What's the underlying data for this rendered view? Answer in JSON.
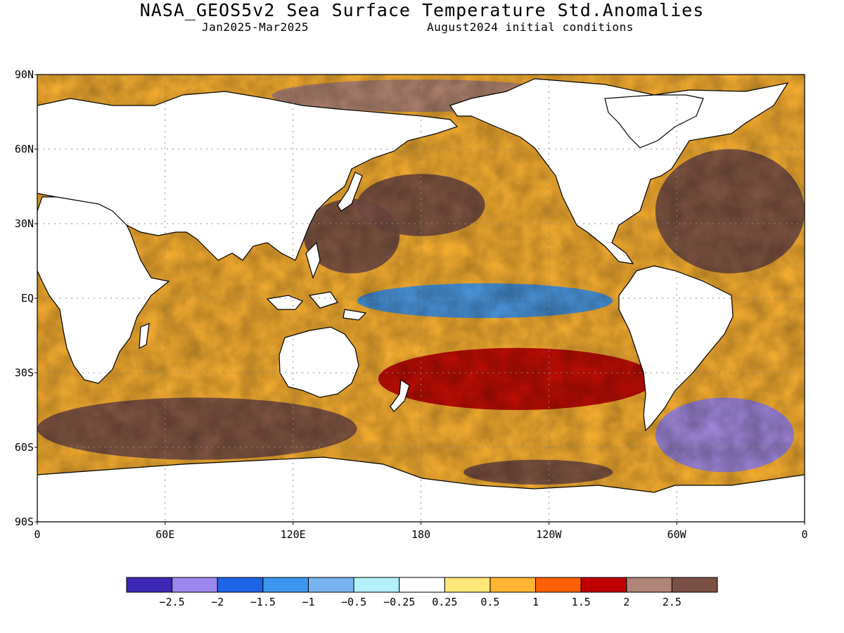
{
  "title": "NASA_GEOS5v2 Sea Surface Temperature Std.Anomalies",
  "subtitle_left": "Jan2025-Mar2025",
  "subtitle_right": "August2024 initial conditions",
  "map": {
    "lat_labels": [
      "90N",
      "60N",
      "30N",
      "EQ",
      "30S",
      "60S",
      "90S"
    ],
    "lon_labels": [
      "0",
      "60E",
      "120E",
      "180",
      "120W",
      "60W",
      "0"
    ],
    "gridlines": true,
    "land_color": "#ffffff",
    "anomaly_regions": [
      {
        "name": "equatorial-pacific-cool-tongue",
        "level": "-1",
        "lon": [
          150,
          270
        ],
        "lat": [
          -8,
          6
        ]
      },
      {
        "name": "west-pacific-warm",
        "level": "2.5",
        "lon": [
          125,
          170
        ],
        "lat": [
          10,
          40
        ]
      },
      {
        "name": "north-pacific-warm",
        "level": "2.5",
        "lon": [
          150,
          210
        ],
        "lat": [
          25,
          50
        ]
      },
      {
        "name": "north-atlantic-warm",
        "level": "2.5",
        "lon": [
          290,
          360
        ],
        "lat": [
          10,
          60
        ]
      },
      {
        "name": "arctic-warm-band",
        "level": "2",
        "lon": [
          110,
          250
        ],
        "lat": [
          75,
          88
        ]
      },
      {
        "name": "southern-ocean-warm",
        "level": "2.5",
        "lon": [
          0,
          150
        ],
        "lat": [
          -65,
          -40
        ]
      },
      {
        "name": "south-atlantic-cool",
        "level": "-2",
        "lon": [
          290,
          355
        ],
        "lat": [
          -70,
          -40
        ]
      },
      {
        "name": "south-pacific-warm-belt",
        "level": "1.5",
        "lon": [
          160,
          290
        ],
        "lat": [
          -45,
          -20
        ]
      },
      {
        "name": "ross-sea-warm",
        "level": "2.5",
        "lon": [
          200,
          270
        ],
        "lat": [
          -75,
          -65
        ]
      }
    ]
  },
  "colorbar": {
    "colors": [
      "#3c28b4",
      "#9b87ee",
      "#1e64e6",
      "#3c96f0",
      "#78b4f0",
      "#b4f0fa",
      "#ffffff",
      "#ffe678",
      "#ffb432",
      "#ff6000",
      "#c00000",
      "#b08478",
      "#7a5045"
    ],
    "tick_labels": [
      "-2.5",
      "-2",
      "-1.5",
      "-1",
      "-0.5",
      "-0.25",
      "0.25",
      "0.5",
      "1",
      "1.5",
      "2",
      "2.5"
    ]
  }
}
